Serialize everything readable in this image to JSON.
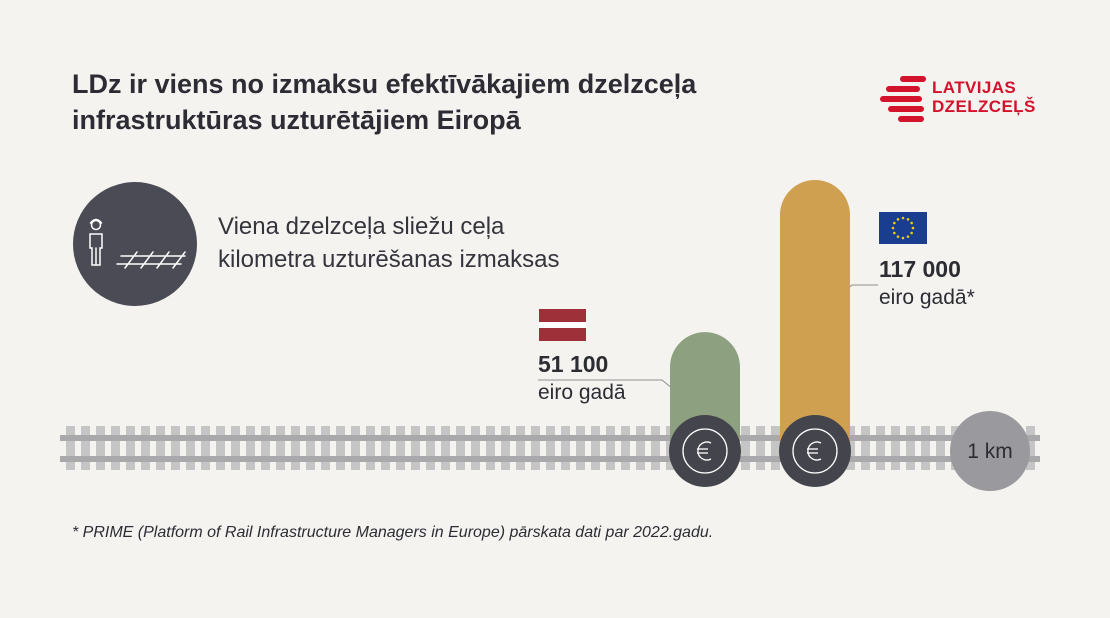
{
  "header": {
    "title_line1": "LDz ir viens no izmaksu efektīvākajiem dzelzceļa",
    "title_line2": "infrastruktūras uzturētājiem Eiropā"
  },
  "logo": {
    "line1": "LATVIJAS",
    "line2": "DZELZCEĻŠ",
    "color": "#d3122c"
  },
  "subtitle": {
    "line1": "Viena dzelzceļa sliežu ceļa",
    "line2": "kilometra uzturēšanas izmaksas"
  },
  "chart_data": {
    "type": "bar",
    "categories": [
      "Latvija",
      "Eiropa"
    ],
    "values": [
      51100,
      117000
    ],
    "unit": "eiro gadā",
    "bars": [
      {
        "value_label": "51 100",
        "unit_label": "eiro gadā",
        "flag": "latvia-flag",
        "color": "#8da07f"
      },
      {
        "value_label": "117 000",
        "unit_label": "eiro gadā*",
        "flag": "eu-flag",
        "color": "#cea04f"
      }
    ],
    "ylim": [
      0,
      117000
    ],
    "track_label": "1 km",
    "currency_icon": "euro-icon"
  },
  "footnote": "* PRIME (Platform of Rail Infrastructure Managers in Europe) pārskata dati par 2022.gadu."
}
